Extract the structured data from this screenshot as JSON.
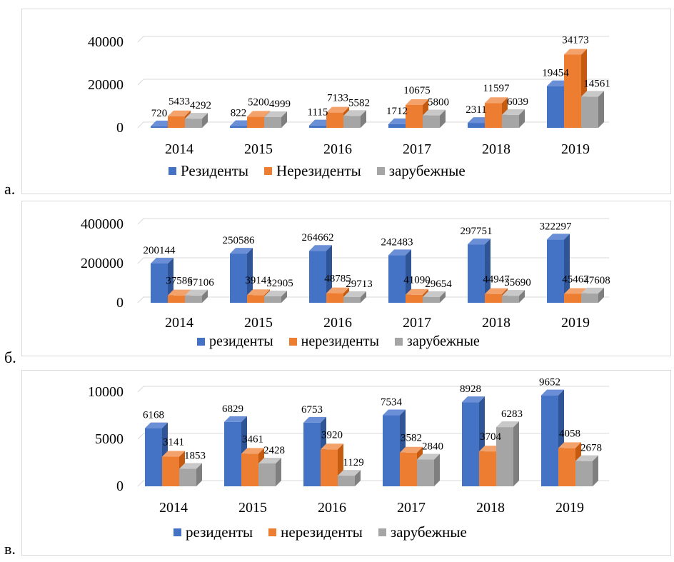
{
  "panels": [
    {
      "letter": "а.",
      "chart_data": {
        "type": "bar",
        "categories": [
          "2014",
          "2015",
          "2016",
          "2017",
          "2018",
          "2019"
        ],
        "series": [
          {
            "name": "Резиденты",
            "values": [
              720,
              822,
              1115,
              1712,
              2311,
              19454
            ]
          },
          {
            "name": "Нерезиденты",
            "values": [
              5433,
              5200,
              7133,
              10675,
              11597,
              34173
            ]
          },
          {
            "name": "зарубежные",
            "values": [
              4292,
              4999,
              5582,
              5800,
              6039,
              14561
            ]
          }
        ],
        "yticks": [
          "40000",
          "20000",
          "0"
        ],
        "ylim": [
          0,
          40000
        ],
        "grid": true,
        "legend": "bottom"
      }
    },
    {
      "letter": "б.",
      "chart_data": {
        "type": "bar",
        "categories": [
          "2014",
          "2015",
          "2016",
          "2017",
          "2018",
          "2019"
        ],
        "series": [
          {
            "name": "резиденты",
            "values": [
              200144,
              250586,
              264662,
              242483,
              297751,
              322297
            ]
          },
          {
            "name": "нерезиденты",
            "values": [
              37586,
              39141,
              48785,
              41090,
              44947,
              45467
            ]
          },
          {
            "name": "зарубежные",
            "values": [
              37106,
              32905,
              29713,
              29654,
              35690,
              47608
            ]
          }
        ],
        "yticks": [
          "400000",
          "200000",
          "0"
        ],
        "ylim": [
          0,
          400000
        ],
        "grid": true,
        "legend": "bottom"
      }
    },
    {
      "letter": "в.",
      "chart_data": {
        "type": "bar",
        "categories": [
          "2014",
          "2015",
          "2016",
          "2017",
          "2018",
          "2019"
        ],
        "series": [
          {
            "name": "резиденты",
            "values": [
              6168,
              6829,
              6753,
              7534,
              8928,
              9652
            ]
          },
          {
            "name": "нерезиденты",
            "values": [
              3141,
              3461,
              3920,
              3582,
              3704,
              4058
            ]
          },
          {
            "name": "зарубежные",
            "values": [
              1853,
              2428,
              1129,
              2840,
              6283,
              2678
            ]
          }
        ],
        "yticks": [
          "10000",
          "5000",
          "0"
        ],
        "ylim": [
          0,
          10000
        ],
        "grid": true,
        "legend": "bottom"
      }
    }
  ],
  "colors": {
    "series": [
      "#4472c4",
      "#ed7d31",
      "#a5a5a5"
    ],
    "series_dark": [
      "#2f5597",
      "#c55a11",
      "#7f7f7f"
    ],
    "series_top": [
      "#6b8fd6",
      "#f4a26c",
      "#c8c8c8"
    ],
    "grid": "#d9d9d9"
  }
}
